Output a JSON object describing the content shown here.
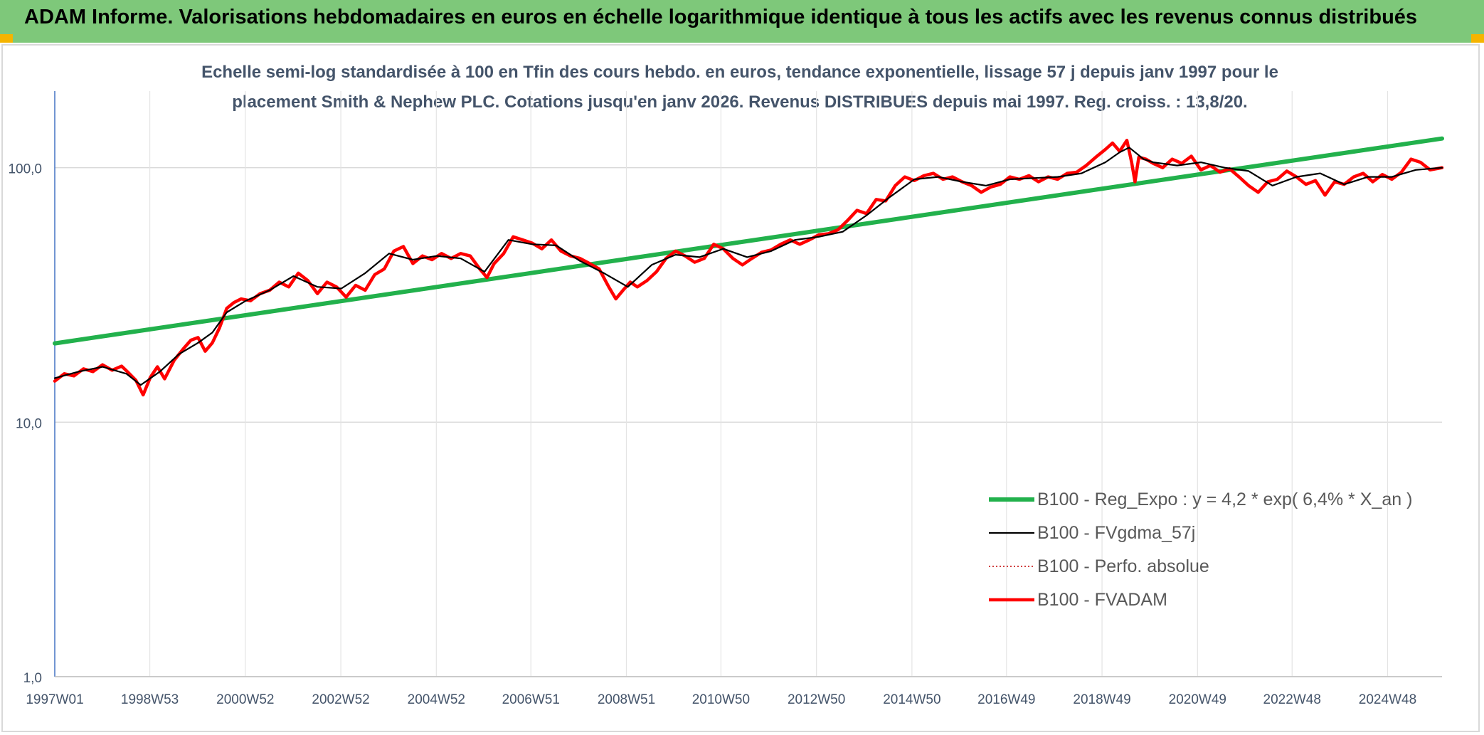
{
  "header": {
    "title": "ADAM Informe. Valorisations hebdomadaires en euros en échelle logarithmique identique à tous les actifs avec les revenus connus distribués"
  },
  "chart_data": {
    "type": "line",
    "title_line1": "Echelle semi-log standardisée à 100 en Tfin des cours hebdo. en euros, tendance exponentielle, lissage 57 j depuis janv 1997 pour le",
    "title_line2": "placement Smith & Nephew PLC. Cotations jusqu'en janv 2026. Revenus DISTRIBUES depuis mai 1997. Reg. croiss. : 13,8/20.",
    "y_scale": "log",
    "ylim": [
      1,
      200
    ],
    "y_ticks": [
      1,
      10,
      100
    ],
    "y_tick_labels": [
      "1,0",
      "10,0",
      "100,0"
    ],
    "xlim": [
      1997.0,
      2026.05
    ],
    "x_ticks": [
      1997.0,
      1998.99,
      2000.99,
      2002.99,
      2004.99,
      2006.97,
      2008.97,
      2010.95,
      2012.95,
      2014.95,
      2016.93,
      2018.93,
      2020.93,
      2022.91,
      2024.91
    ],
    "x_tick_labels": [
      "1997W01",
      "1998W53",
      "2000W52",
      "2002W52",
      "2004W52",
      "2006W51",
      "2008W51",
      "2010W50",
      "2012W50",
      "2014W50",
      "2016W49",
      "2018W49",
      "2020W49",
      "2022W48",
      "2024W48"
    ],
    "grid": true,
    "legend_position": "lower-right",
    "series": [
      {
        "name": "B100 - Reg_Expo : y = 4,2 * exp( 6,4% *  X_an )",
        "color": "#22b14c",
        "style": "solid-thick",
        "x": [
          1997.0,
          2026.05
        ],
        "values": [
          20.4,
          130.2
        ]
      },
      {
        "name": "B100 - FVgdma_57j",
        "color": "#000000",
        "style": "solid-thin",
        "x": [
          1997.0,
          1997.5,
          1998.0,
          1998.5,
          1998.8,
          1999.2,
          1999.6,
          2000.0,
          2000.3,
          2000.6,
          2001.0,
          2001.5,
          2002.0,
          2002.5,
          2003.0,
          2003.5,
          2004.0,
          2004.5,
          2005.0,
          2005.5,
          2006.0,
          2006.5,
          2007.0,
          2007.5,
          2008.0,
          2008.5,
          2009.0,
          2009.5,
          2010.0,
          2010.5,
          2011.0,
          2011.5,
          2012.0,
          2012.5,
          2013.0,
          2013.5,
          2014.0,
          2014.5,
          2015.0,
          2015.5,
          2016.0,
          2016.5,
          2017.0,
          2017.5,
          2018.0,
          2018.5,
          2019.0,
          2019.3,
          2019.5,
          2019.8,
          2020.0,
          2020.5,
          2021.0,
          2021.5,
          2022.0,
          2022.5,
          2023.0,
          2023.5,
          2024.0,
          2024.5,
          2025.0,
          2025.5,
          2026.05
        ],
        "values": [
          14.9,
          15.8,
          16.5,
          15.5,
          14.0,
          15.8,
          18.5,
          20.5,
          22.5,
          27.0,
          30.0,
          33.0,
          37.5,
          34.0,
          33.5,
          38.5,
          46.0,
          43.5,
          45.0,
          44.0,
          39.0,
          52.0,
          50.0,
          49.5,
          43.0,
          38.5,
          34.0,
          41.5,
          45.5,
          44.5,
          48.0,
          44.5,
          47.0,
          52.0,
          53.5,
          56.0,
          65.0,
          77.0,
          90.0,
          92.0,
          88.0,
          85.0,
          90.0,
          91.0,
          92.0,
          95.0,
          105.0,
          115.0,
          120.0,
          108.0,
          105.0,
          102.0,
          105.0,
          100.0,
          97.0,
          85.0,
          92.0,
          95.0,
          86.0,
          92.0,
          92.0,
          98.0,
          100.0
        ]
      },
      {
        "name": "B100 - Perfo. absolue",
        "color": "#c00000",
        "style": "dotted",
        "x": [
          1997.0,
          1997.5,
          1998.0,
          1998.5,
          1998.8,
          1999.2,
          1999.6,
          2000.0,
          2000.3,
          2000.6,
          2001.0,
          2001.5,
          2002.0,
          2002.5,
          2003.0,
          2003.5,
          2004.0,
          2004.5,
          2005.0,
          2005.5,
          2006.0,
          2006.5,
          2007.0,
          2007.5,
          2008.0,
          2008.5,
          2009.0,
          2009.5,
          2010.0,
          2010.5,
          2011.0,
          2011.5,
          2012.0,
          2012.5,
          2013.0,
          2013.5,
          2014.0,
          2014.5,
          2015.0,
          2015.5,
          2016.0,
          2016.5,
          2017.0,
          2017.5,
          2018.0,
          2018.5,
          2019.0,
          2019.3,
          2019.5,
          2019.8,
          2020.0,
          2020.5,
          2021.0,
          2021.5,
          2022.0,
          2022.5,
          2023.0,
          2023.5,
          2024.0,
          2024.5,
          2025.0,
          2025.5,
          2026.05
        ],
        "values": [
          14.9,
          15.8,
          16.5,
          15.5,
          14.0,
          15.8,
          18.5,
          20.5,
          22.5,
          27.0,
          30.0,
          33.0,
          37.5,
          34.0,
          33.5,
          38.5,
          46.0,
          43.5,
          45.0,
          44.0,
          39.0,
          52.0,
          50.0,
          49.5,
          43.0,
          38.5,
          34.0,
          41.5,
          45.5,
          44.5,
          48.0,
          44.5,
          47.0,
          52.0,
          53.5,
          56.0,
          65.0,
          77.0,
          90.0,
          92.0,
          88.0,
          85.0,
          90.0,
          91.0,
          92.0,
          95.0,
          105.0,
          115.0,
          120.0,
          108.0,
          105.0,
          102.0,
          105.0,
          100.0,
          97.0,
          85.0,
          92.0,
          95.0,
          86.0,
          92.0,
          92.0,
          98.0,
          100.0
        ]
      },
      {
        "name": "B100 - FVADAM",
        "color": "#ff0000",
        "style": "solid-thick",
        "x": [
          1997.0,
          1997.2,
          1997.4,
          1997.6,
          1997.8,
          1998.0,
          1998.2,
          1998.4,
          1998.55,
          1998.7,
          1998.85,
          1999.0,
          1999.15,
          1999.3,
          1999.5,
          1999.7,
          1999.85,
          2000.0,
          2000.15,
          2000.3,
          2000.45,
          2000.6,
          2000.75,
          2000.9,
          2001.1,
          2001.3,
          2001.5,
          2001.7,
          2001.9,
          2002.1,
          2002.3,
          2002.5,
          2002.7,
          2002.9,
          2003.1,
          2003.3,
          2003.5,
          2003.7,
          2003.9,
          2004.1,
          2004.3,
          2004.5,
          2004.7,
          2004.9,
          2005.1,
          2005.3,
          2005.5,
          2005.7,
          2005.9,
          2006.05,
          2006.2,
          2006.4,
          2006.6,
          2006.8,
          2007.0,
          2007.2,
          2007.4,
          2007.6,
          2007.8,
          2008.0,
          2008.2,
          2008.4,
          2008.6,
          2008.75,
          2008.9,
          2009.05,
          2009.2,
          2009.4,
          2009.6,
          2009.8,
          2010.0,
          2010.2,
          2010.4,
          2010.6,
          2010.8,
          2011.0,
          2011.2,
          2011.4,
          2011.6,
          2011.8,
          2012.0,
          2012.2,
          2012.4,
          2012.6,
          2012.8,
          2013.0,
          2013.2,
          2013.4,
          2013.6,
          2013.8,
          2014.0,
          2014.2,
          2014.4,
          2014.6,
          2014.8,
          2015.0,
          2015.2,
          2015.4,
          2015.6,
          2015.8,
          2016.0,
          2016.2,
          2016.4,
          2016.6,
          2016.8,
          2017.0,
          2017.2,
          2017.4,
          2017.6,
          2017.8,
          2018.0,
          2018.2,
          2018.4,
          2018.6,
          2018.8,
          2019.0,
          2019.15,
          2019.3,
          2019.45,
          2019.55,
          2019.62,
          2019.7,
          2019.85,
          2020.0,
          2020.2,
          2020.4,
          2020.6,
          2020.8,
          2021.0,
          2021.2,
          2021.4,
          2021.6,
          2021.8,
          2022.0,
          2022.2,
          2022.4,
          2022.6,
          2022.8,
          2023.0,
          2023.2,
          2023.4,
          2023.6,
          2023.8,
          2024.0,
          2024.2,
          2024.4,
          2024.6,
          2024.8,
          2025.0,
          2025.2,
          2025.4,
          2025.6,
          2025.8,
          2026.05
        ],
        "values": [
          14.5,
          15.5,
          15.2,
          16.2,
          15.8,
          16.8,
          16.0,
          16.6,
          15.6,
          14.6,
          12.8,
          15.0,
          16.5,
          14.8,
          17.5,
          19.5,
          21.0,
          21.5,
          19.0,
          20.5,
          23.5,
          28.0,
          29.5,
          30.5,
          30.0,
          32.0,
          33.0,
          35.5,
          34.0,
          38.5,
          36.0,
          32.0,
          35.5,
          34.0,
          31.0,
          34.5,
          33.0,
          38.0,
          40.0,
          47.0,
          49.0,
          42.0,
          45.0,
          43.5,
          46.0,
          44.0,
          46.0,
          45.0,
          40.0,
          37.0,
          42.0,
          46.0,
          53.5,
          52.0,
          50.5,
          48.0,
          52.0,
          47.0,
          45.0,
          44.0,
          42.0,
          40.0,
          34.0,
          30.5,
          33.0,
          35.5,
          34.0,
          36.0,
          39.0,
          44.0,
          47.0,
          45.0,
          42.5,
          44.0,
          50.0,
          48.0,
          44.0,
          41.5,
          44.0,
          46.5,
          47.5,
          50.0,
          52.0,
          50.0,
          52.0,
          54.5,
          55.0,
          57.0,
          62.0,
          68.0,
          66.0,
          75.0,
          74.0,
          85.0,
          92.0,
          89.0,
          93.0,
          95.0,
          90.0,
          92.0,
          88.0,
          85.0,
          80.0,
          84.0,
          86.0,
          92.0,
          90.0,
          93.0,
          88.0,
          92.0,
          90.0,
          95.0,
          96.0,
          102.0,
          110.0,
          118.0,
          125.0,
          116.0,
          128.0,
          105.0,
          88.0,
          110.0,
          108.0,
          104.0,
          100.0,
          108.0,
          104.0,
          111.0,
          98.0,
          102.0,
          96.0,
          99.0,
          92.0,
          85.0,
          80.0,
          88.0,
          90.0,
          97.0,
          92.0,
          86.0,
          89.0,
          78.0,
          88.0,
          86.0,
          92.0,
          95.0,
          88.0,
          94.0,
          90.0,
          96.0,
          108.0,
          105.0,
          98.0,
          100.0
        ]
      }
    ]
  }
}
